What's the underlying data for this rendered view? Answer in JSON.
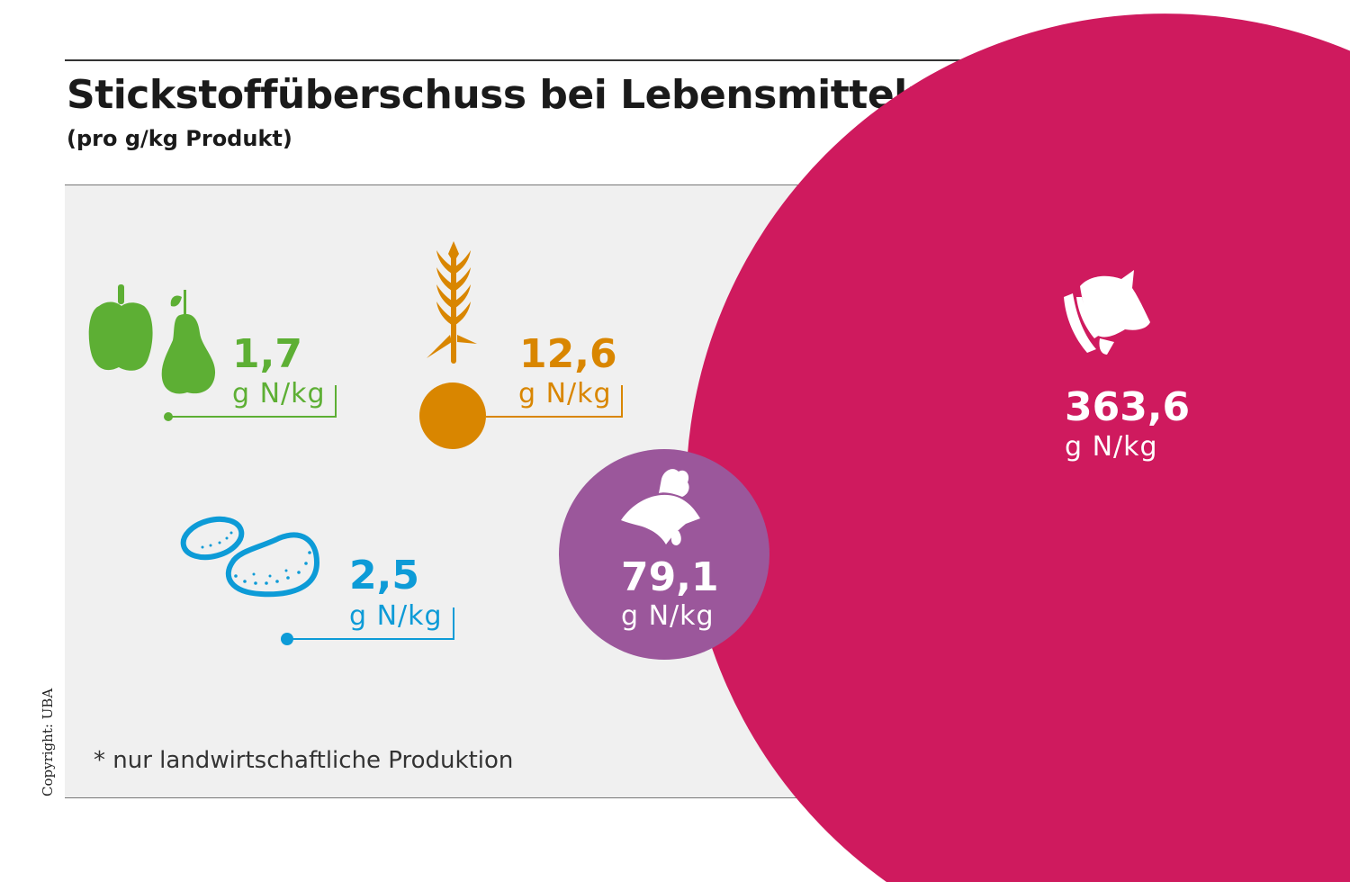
{
  "title": "Stickstoffüberschuss bei Lebensmitteln*",
  "subtitle": "(pro g/kg Produkt)",
  "footnote": "* nur landwirtschaftliche Produktion",
  "copyright": "Copyright: UBA",
  "chart_data": {
    "type": "bubble",
    "title": "Stickstoffüberschuss bei Lebensmitteln*",
    "subtitle": "(pro g/kg Produkt)",
    "unit": "g N/kg",
    "items": [
      {
        "name": "Obst und Gemüse",
        "icon": "pepper-pear-icon",
        "value": 1.7,
        "label": "1,7",
        "unit": "g N/kg",
        "color": "#5daf34"
      },
      {
        "name": "Getreide",
        "icon": "wheat-icon",
        "value": 12.6,
        "label": "12,6",
        "unit": "g N/kg",
        "color": "#d98600"
      },
      {
        "name": "Kartoffeln",
        "icon": "potato-icon",
        "value": 2.5,
        "label": "2,5",
        "unit": "g N/kg",
        "color": "#0d9bd7"
      },
      {
        "name": "Geflügel",
        "icon": "chicken-icon",
        "value": 79.1,
        "label": "79,1",
        "unit": "g N/kg",
        "color": "#9b579b"
      },
      {
        "name": "Rind",
        "icon": "cow-icon",
        "value": 363.6,
        "label": "363,6",
        "unit": "g N/kg",
        "color": "#cf1a5e"
      }
    ]
  }
}
